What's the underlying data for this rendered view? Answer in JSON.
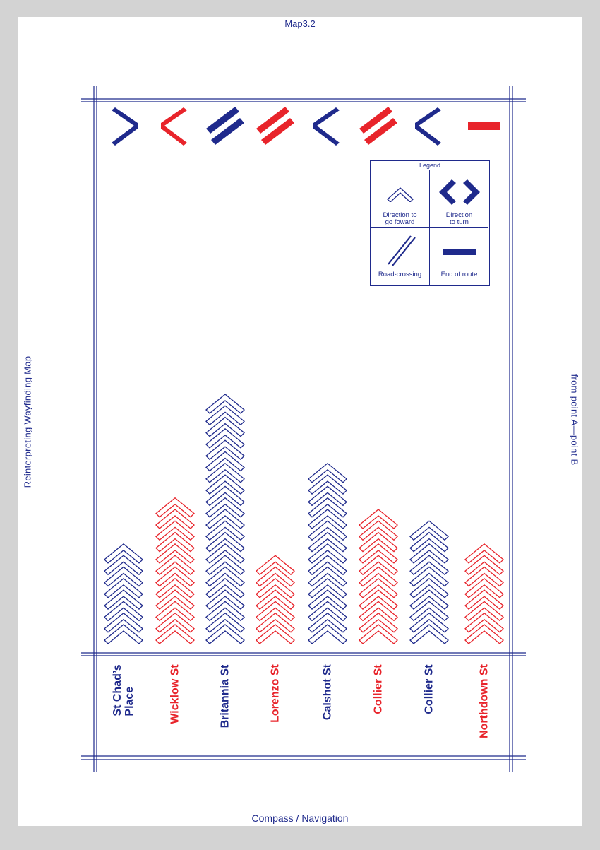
{
  "header": {
    "title": "Map3.2"
  },
  "footer": {
    "title": "Compass / Navigation"
  },
  "side": {
    "left": "Reinterpreting Wayfinding Map",
    "right": "from point A—point B"
  },
  "colors": {
    "navy": "#1f2a8c",
    "red": "#e8242b",
    "page": "#ffffff",
    "background": "#d3d3d3"
  },
  "chart_data": {
    "type": "table",
    "streets": [
      {
        "name": "St Chad’s\nPlace",
        "color": "navy",
        "chevrons": 8,
        "turn": "right-chevron-icon"
      },
      {
        "name": "Wicklow St",
        "color": "red",
        "chevrons": 12,
        "turn": "left-chevron-icon"
      },
      {
        "name": "Britannia St",
        "color": "navy",
        "chevrons": 21,
        "turn": "road-crossing-icon"
      },
      {
        "name": "Lorenzo St",
        "color": "red",
        "chevrons": 7,
        "turn": "road-crossing-icon"
      },
      {
        "name": "Calshot St",
        "color": "navy",
        "chevrons": 15,
        "turn": "left-chevron-icon"
      },
      {
        "name": "Collier St",
        "color": "red",
        "chevrons": 11,
        "turn": "road-crossing-icon"
      },
      {
        "name": "Collier St",
        "color": "navy",
        "chevrons": 10,
        "turn": "left-chevron-icon"
      },
      {
        "name": "Northdown St",
        "color": "red",
        "chevrons": 8,
        "turn": "end-of-route-icon"
      }
    ]
  },
  "legend": {
    "title": "Legend",
    "items": [
      {
        "label": "Direction to\ngo foward",
        "icon": "forward-chevron-icon"
      },
      {
        "label": "Direction\nto turn",
        "icon": "turn-chevrons-icon"
      },
      {
        "label": "Road-crossing",
        "icon": "road-crossing-icon"
      },
      {
        "label": "End of route",
        "icon": "end-of-route-icon"
      }
    ]
  }
}
